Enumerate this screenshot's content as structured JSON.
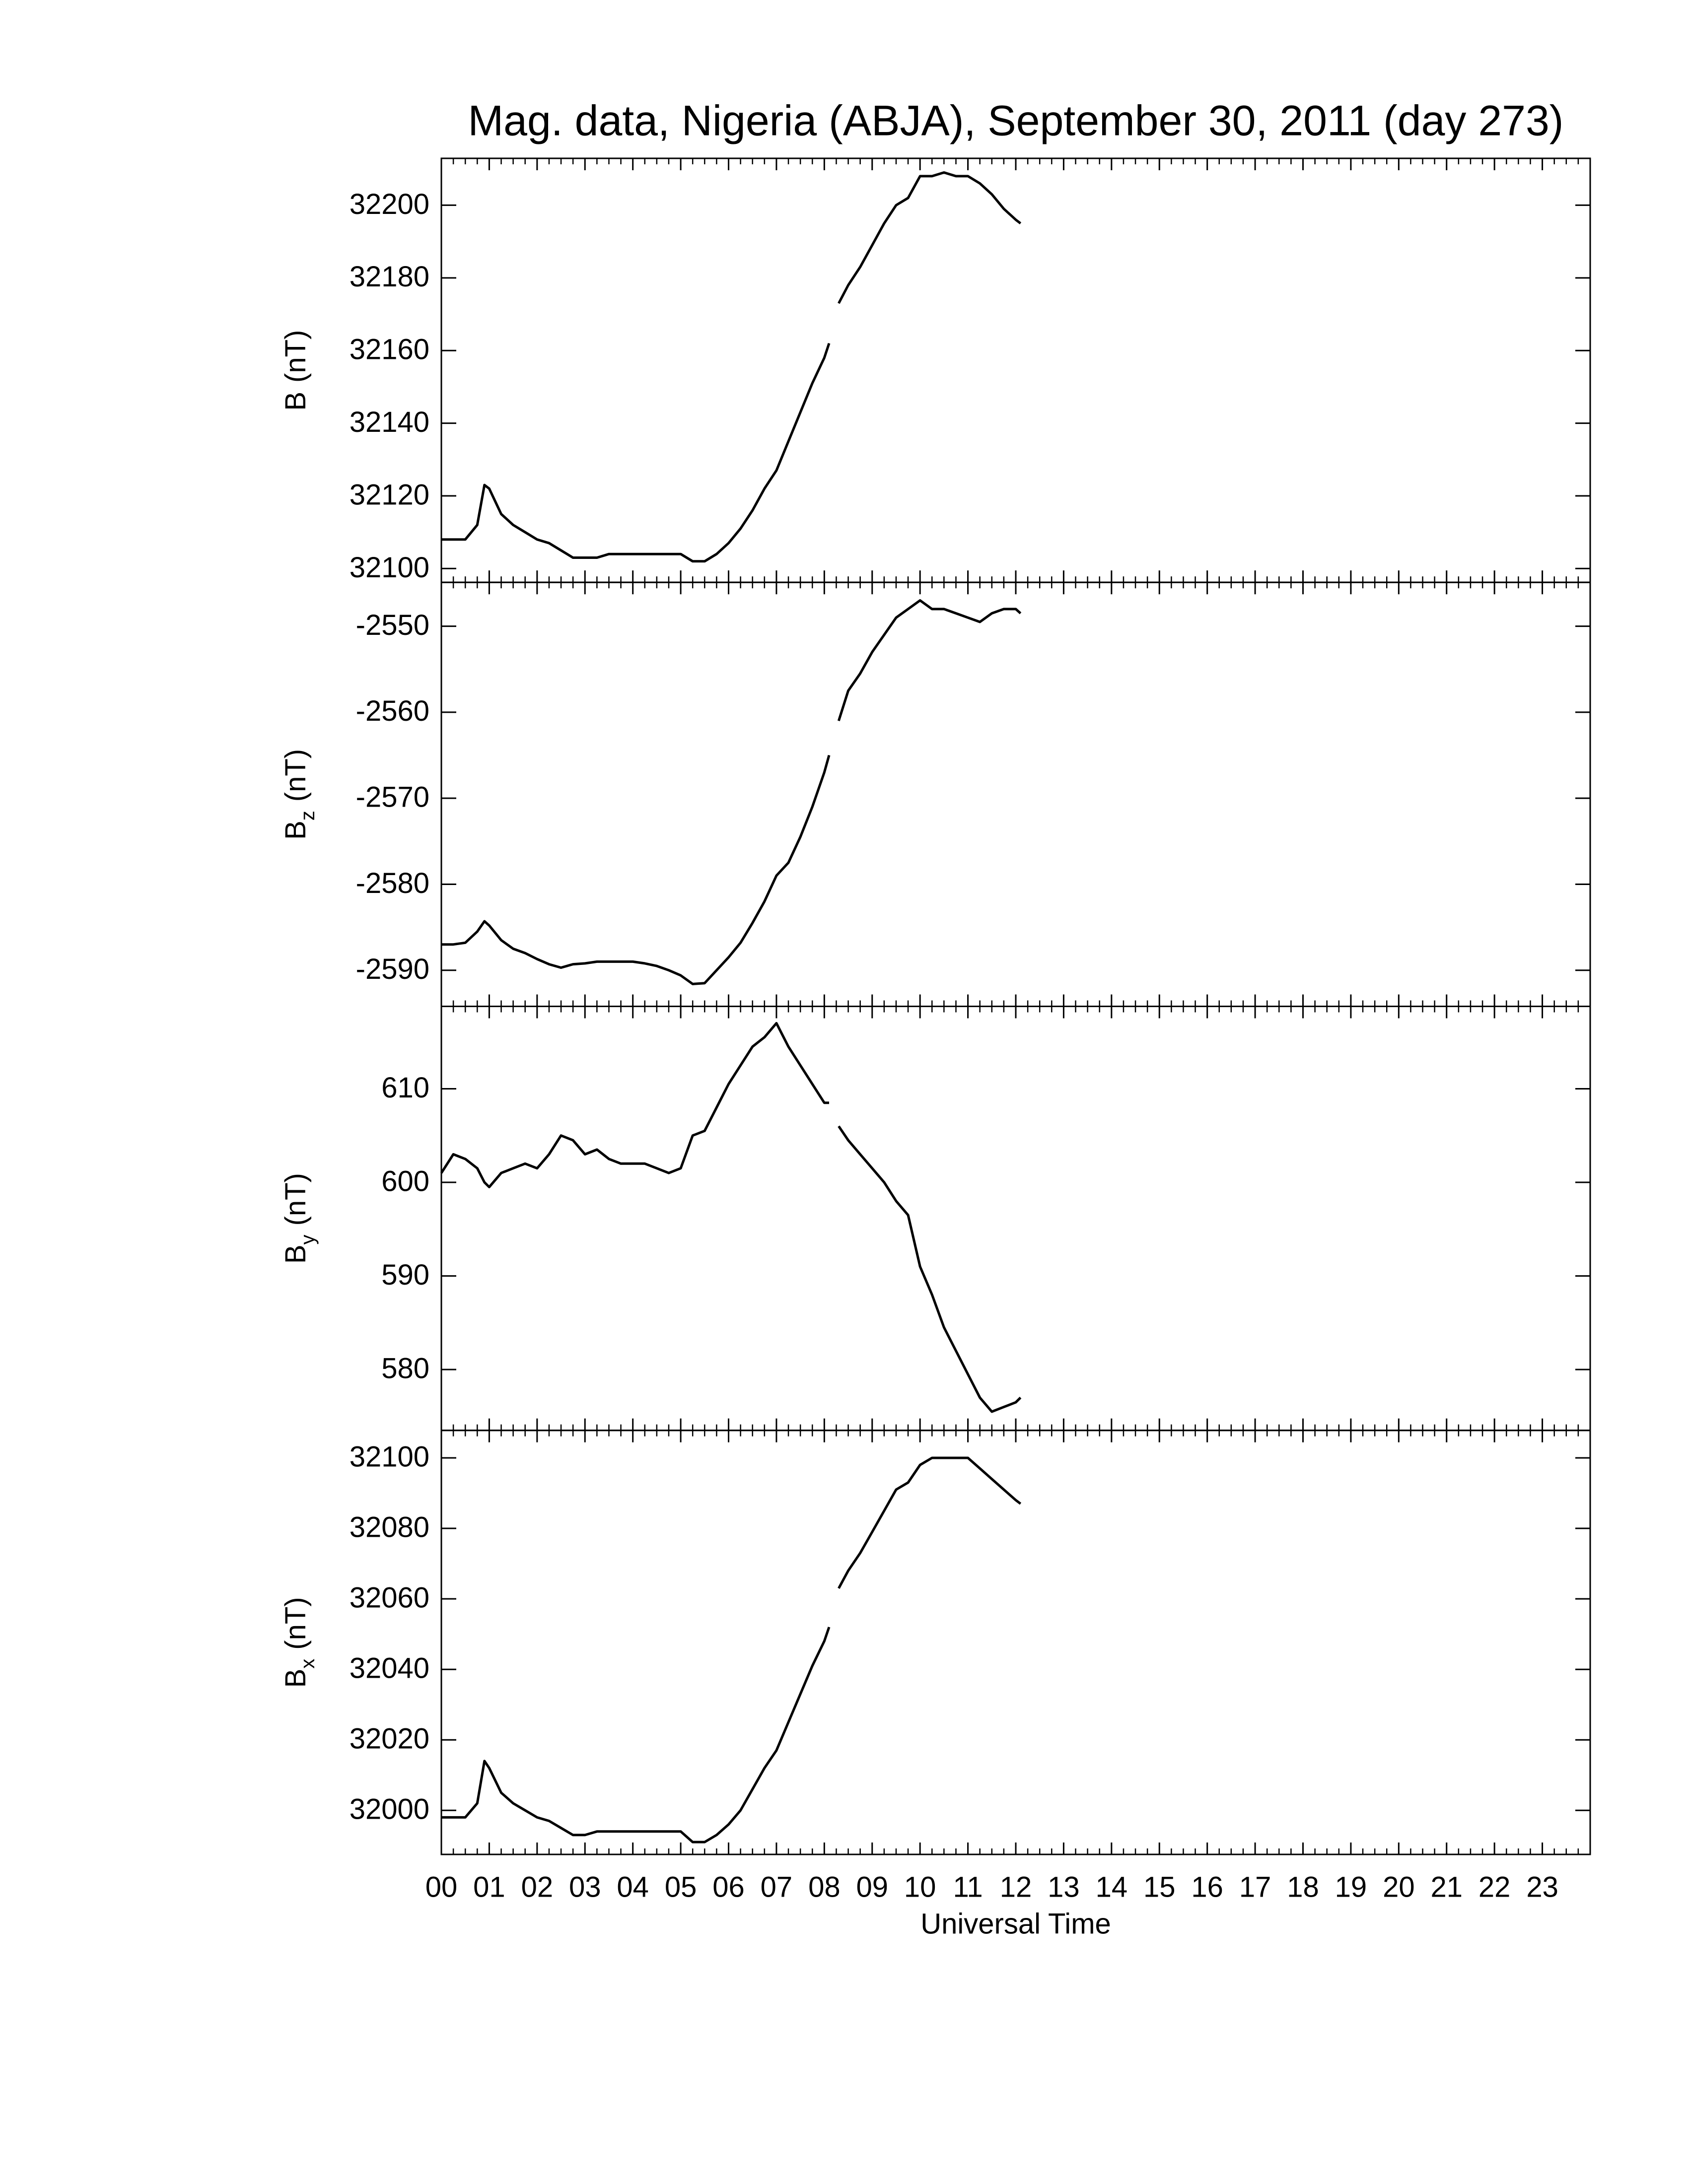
{
  "chart_data": [
    {
      "type": "line",
      "title": "Mag. data, Nigeria (ABJA), September 30, 2011 (day 273)",
      "ylabel": "B",
      "ylabel_unit": "(nT)",
      "x": [
        0,
        0.25,
        0.5,
        0.75,
        0.9,
        1,
        1.25,
        1.5,
        1.75,
        2,
        2.25,
        2.5,
        2.75,
        3,
        3.25,
        3.5,
        3.75,
        4,
        4.25,
        4.5,
        4.75,
        5,
        5.25,
        5.5,
        5.75,
        6,
        6.25,
        6.5,
        6.75,
        7,
        7.25,
        7.5,
        7.75,
        8,
        8.1,
        8.2,
        8.3,
        8.5,
        8.75,
        9,
        9.25,
        9.5,
        9.75,
        10,
        10.25,
        10.5,
        10.75,
        11,
        11.25,
        11.5,
        11.75,
        12,
        12.1
      ],
      "series": [
        {
          "color": "#000000",
          "values": [
            32108,
            32108,
            32108,
            32112,
            32123,
            32122,
            32115,
            32112,
            32110,
            32108,
            32107,
            32105,
            32103,
            32103,
            32103,
            32104,
            32104,
            32104,
            32104,
            32104,
            32104,
            32104,
            32102,
            32102,
            32104,
            32107,
            32111,
            32116,
            32122,
            32127,
            32135,
            32143,
            32151,
            32158,
            32162,
            null,
            32173,
            32178,
            32183,
            32189,
            32195,
            32200,
            32202,
            32208,
            32208,
            32209,
            32208,
            32208,
            32206,
            32203,
            32199,
            32196,
            32195
          ]
        }
      ],
      "xlim": [
        0,
        24
      ],
      "ylim": [
        32096.2,
        32212.9
      ],
      "yticks": [
        32100,
        32120,
        32140,
        32160,
        32180,
        32200
      ]
    },
    {
      "type": "line",
      "ylabel": "B",
      "ylabel_subscript": "z",
      "ylabel_unit": "(nT)",
      "x": [
        0,
        0.25,
        0.5,
        0.75,
        0.9,
        1,
        1.25,
        1.5,
        1.75,
        2,
        2.25,
        2.5,
        2.75,
        3,
        3.25,
        3.5,
        3.75,
        4,
        4.25,
        4.5,
        4.75,
        5,
        5.25,
        5.5,
        5.75,
        6,
        6.25,
        6.5,
        6.75,
        7,
        7.25,
        7.5,
        7.75,
        8,
        8.1,
        8.2,
        8.3,
        8.5,
        8.75,
        9,
        9.25,
        9.5,
        9.75,
        10,
        10.25,
        10.5,
        10.75,
        11,
        11.25,
        11.5,
        11.75,
        12,
        12.1
      ],
      "series": [
        {
          "color": "#000000",
          "values": [
            -2587,
            -2587,
            -2586.8,
            -2585.5,
            -2584.3,
            -2584.8,
            -2586.5,
            -2587.5,
            -2588,
            -2588.7,
            -2589.3,
            -2589.7,
            -2589.3,
            -2589.2,
            -2589,
            -2589,
            -2589,
            -2589,
            -2589.2,
            -2589.5,
            -2590,
            -2590.6,
            -2591.6,
            -2591.5,
            -2590,
            -2588.5,
            -2586.8,
            -2584.5,
            -2582,
            -2579,
            -2577.5,
            -2574.5,
            -2571,
            -2567,
            -2565,
            null,
            -2561,
            -2557.5,
            -2555.5,
            -2553,
            -2551,
            -2549,
            -2548,
            -2547,
            -2548,
            -2548,
            -2548.5,
            -2549,
            -2549.5,
            -2548.5,
            -2548,
            -2548,
            -2548.5
          ]
        }
      ],
      "xlim": [
        0,
        24
      ],
      "ylim": [
        -2594.2,
        -2544.9
      ],
      "yticks": [
        -2590,
        -2580,
        -2570,
        -2560,
        -2550
      ]
    },
    {
      "type": "line",
      "ylabel": "B",
      "ylabel_subscript": "y",
      "ylabel_unit": "(nT)",
      "x": [
        0,
        0.25,
        0.5,
        0.75,
        0.9,
        1,
        1.25,
        1.5,
        1.75,
        2,
        2.25,
        2.5,
        2.75,
        3,
        3.25,
        3.5,
        3.75,
        4,
        4.25,
        4.5,
        4.75,
        5,
        5.25,
        5.5,
        5.75,
        6,
        6.25,
        6.5,
        6.75,
        7,
        7.25,
        7.5,
        7.75,
        8,
        8.1,
        8.2,
        8.3,
        8.5,
        8.75,
        9,
        9.25,
        9.5,
        9.75,
        10,
        10.25,
        10.5,
        10.75,
        11,
        11.25,
        11.5,
        11.75,
        12,
        12.1
      ],
      "series": [
        {
          "color": "#000000",
          "values": [
            601,
            603,
            602.5,
            601.5,
            600,
            599.5,
            601,
            601.5,
            602,
            601.5,
            603,
            605,
            604.5,
            603,
            603.5,
            602.5,
            602,
            602,
            602,
            601.5,
            601,
            601.5,
            605,
            605.5,
            608,
            610.5,
            612.5,
            614.5,
            615.5,
            617,
            614.5,
            612.5,
            610.5,
            608.5,
            608.5,
            null,
            606,
            604.5,
            603,
            601.5,
            600,
            598,
            596.5,
            591,
            588,
            584.5,
            582,
            579.5,
            577,
            575.5,
            576,
            576.5,
            577
          ]
        }
      ],
      "xlim": [
        0,
        24
      ],
      "ylim": [
        573.5,
        618.8
      ],
      "yticks": [
        580,
        590,
        600,
        610
      ]
    },
    {
      "type": "line",
      "ylabel": "B",
      "ylabel_subscript": "x",
      "ylabel_unit": "(nT)",
      "xlabel": "Universal Time",
      "x": [
        0,
        0.25,
        0.5,
        0.75,
        0.9,
        1,
        1.25,
        1.5,
        1.75,
        2,
        2.25,
        2.5,
        2.75,
        3,
        3.25,
        3.5,
        3.75,
        4,
        4.25,
        4.5,
        4.75,
        5,
        5.25,
        5.5,
        5.75,
        6,
        6.25,
        6.5,
        6.75,
        7,
        7.25,
        7.5,
        7.75,
        8,
        8.1,
        8.2,
        8.3,
        8.5,
        8.75,
        9,
        9.25,
        9.5,
        9.75,
        10,
        10.25,
        10.5,
        10.75,
        11,
        11.25,
        11.5,
        11.75,
        12,
        12.1
      ],
      "series": [
        {
          "color": "#000000",
          "values": [
            31998,
            31998,
            31998,
            32002,
            32014,
            32012,
            32005,
            32002,
            32000,
            31998,
            31997,
            31995,
            31993,
            31993,
            31994,
            31994,
            31994,
            31994,
            31994,
            31994,
            31994,
            31994,
            31991,
            31991,
            31993,
            31996,
            32000,
            32006,
            32012,
            32017,
            32025,
            32033,
            32041,
            32048,
            32052,
            null,
            32063,
            32068,
            32073,
            32079,
            32085,
            32091,
            32093,
            32098,
            32100,
            32100,
            32100,
            32100,
            32097,
            32094,
            32091,
            32088,
            32087
          ]
        }
      ],
      "xlim": [
        0,
        24
      ],
      "ylim": [
        31987.5,
        32107.8
      ],
      "yticks": [
        32000,
        32020,
        32040,
        32060,
        32080,
        32100
      ],
      "xticks": [
        {
          "value": 0,
          "label": "00"
        },
        {
          "value": 1,
          "label": "01"
        },
        {
          "value": 2,
          "label": "02"
        },
        {
          "value": 3,
          "label": "03"
        },
        {
          "value": 4,
          "label": "04"
        },
        {
          "value": 5,
          "label": "05"
        },
        {
          "value": 6,
          "label": "06"
        },
        {
          "value": 7,
          "label": "07"
        },
        {
          "value": 8,
          "label": "08"
        },
        {
          "value": 9,
          "label": "09"
        },
        {
          "value": 10,
          "label": "10"
        },
        {
          "value": 11,
          "label": "11"
        },
        {
          "value": 12,
          "label": "12"
        },
        {
          "value": 13,
          "label": "13"
        },
        {
          "value": 14,
          "label": "14"
        },
        {
          "value": 15,
          "label": "15"
        },
        {
          "value": 16,
          "label": "16"
        },
        {
          "value": 17,
          "label": "17"
        },
        {
          "value": 18,
          "label": "18"
        },
        {
          "value": 19,
          "label": "19"
        },
        {
          "value": 20,
          "label": "20"
        },
        {
          "value": 21,
          "label": "21"
        },
        {
          "value": 22,
          "label": "22"
        },
        {
          "value": 23,
          "label": "23"
        }
      ]
    }
  ]
}
